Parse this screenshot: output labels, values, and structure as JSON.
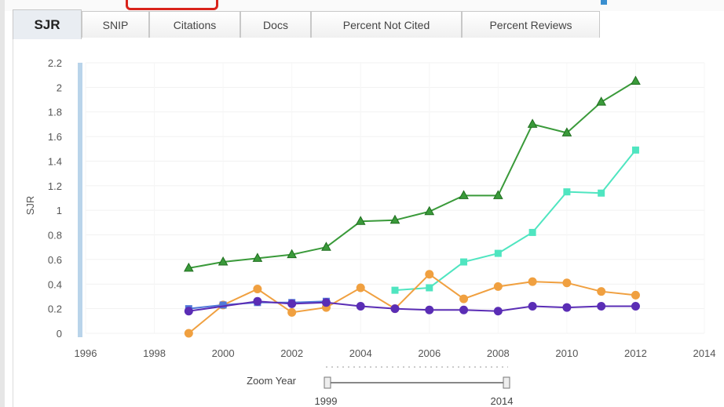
{
  "tabs": [
    {
      "label": "SJR",
      "active": true
    },
    {
      "label": "SNIP",
      "active": false
    },
    {
      "label": "Citations",
      "active": false
    },
    {
      "label": "Docs",
      "active": false
    },
    {
      "label": "Percent Not Cited",
      "active": false
    },
    {
      "label": "Percent Reviews",
      "active": false
    }
  ],
  "zoom": {
    "label": "Zoom Year",
    "start_label": "1999",
    "end_label": "2014"
  },
  "colors": {
    "accent_red": "#d9231b",
    "accent_blue": "#3a8fd0"
  },
  "chart_data": {
    "type": "line",
    "ylabel": "SJR",
    "xlim": [
      1996,
      2014
    ],
    "ylim": [
      0,
      2.2
    ],
    "yticks": [
      0,
      0.2,
      0.4,
      0.6,
      0.8,
      1,
      1.2,
      1.4,
      1.6,
      1.8,
      2,
      2.2
    ],
    "ytick_labels": [
      "0",
      "0.2",
      "0.4",
      "0.6",
      "0.8",
      "1",
      "1.2",
      "1.4",
      "1.6",
      "1.8",
      "2",
      "2.2"
    ],
    "xticks": [
      1996,
      1998,
      2000,
      2002,
      2004,
      2006,
      2008,
      2010,
      2012,
      2014
    ],
    "xtick_labels": [
      "1996",
      "1998",
      "2000",
      "2002",
      "2004",
      "2006",
      "2008",
      "2010",
      "2012",
      "2014"
    ],
    "grid": true,
    "x": [
      1999,
      2000,
      2001,
      2002,
      2003,
      2004,
      2005,
      2006,
      2007,
      2008,
      2009,
      2010,
      2011,
      2012
    ],
    "series": [
      {
        "color": "#3a9a3a",
        "marker": "triangle",
        "values": [
          0.53,
          0.58,
          0.61,
          0.64,
          0.7,
          0.91,
          0.92,
          0.99,
          1.12,
          1.12,
          1.7,
          1.63,
          1.88,
          2.05
        ]
      },
      {
        "color": "#4fe5c0",
        "marker": "square",
        "values": [
          null,
          null,
          null,
          null,
          null,
          null,
          0.35,
          0.37,
          0.58,
          0.65,
          0.82,
          1.15,
          1.14,
          1.49
        ]
      },
      {
        "color": "#f0a040",
        "marker": "circle",
        "values": [
          0.0,
          0.23,
          0.36,
          0.17,
          0.21,
          0.37,
          0.2,
          0.48,
          0.28,
          0.38,
          0.42,
          0.41,
          0.34,
          0.31
        ]
      },
      {
        "color": "#5078d8",
        "marker": "square",
        "values": [
          0.2,
          0.23,
          0.25,
          0.25,
          0.26,
          null,
          null,
          null,
          null,
          null,
          null,
          null,
          null,
          null
        ]
      },
      {
        "color": "#5a2db5",
        "marker": "circle",
        "values": [
          0.18,
          null,
          0.26,
          0.24,
          0.25,
          0.22,
          0.2,
          0.19,
          0.19,
          0.18,
          0.22,
          0.21,
          0.22,
          0.22
        ]
      }
    ]
  }
}
